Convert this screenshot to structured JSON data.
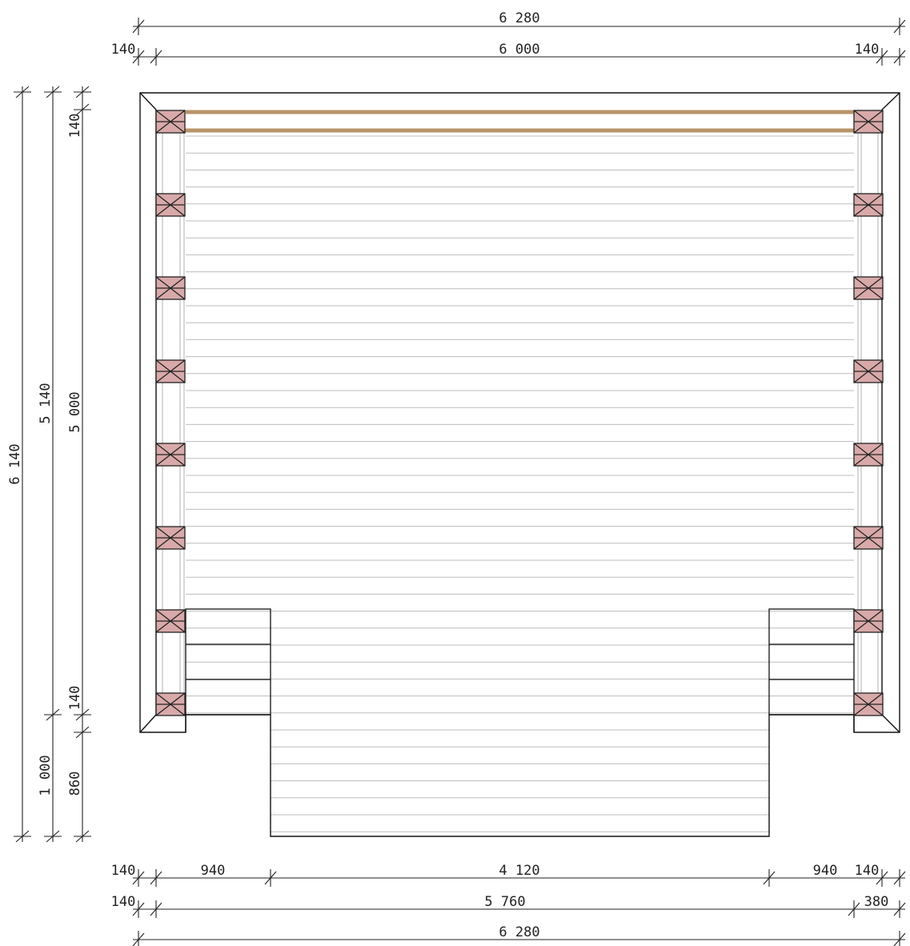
{
  "dimensions": {
    "top_overall": "6 280",
    "top_inner": "6 000",
    "top_left_offset": "140",
    "top_right_offset": "140",
    "left_overall": "6 140",
    "left_main": "5 140",
    "left_lower": "1 000",
    "side_inner": "5 000",
    "side_top_offset": "140",
    "side_mid_offset": "140",
    "side_bottom": "860",
    "bottom_row1_left_offset": "140",
    "bottom_row1_left": "940",
    "bottom_row1_mid": "4 120",
    "bottom_row1_right": "940",
    "bottom_row1_right_offset": "140",
    "bottom_row2_left_offset": "140",
    "bottom_row2_main": "5 760",
    "bottom_row2_right": "380",
    "bottom_overall": "6 280"
  },
  "colors": {
    "post_fill": "#d9a9a9",
    "beam": "#b8946a",
    "board_line": "#bdbdbd",
    "outline": "#111111"
  }
}
